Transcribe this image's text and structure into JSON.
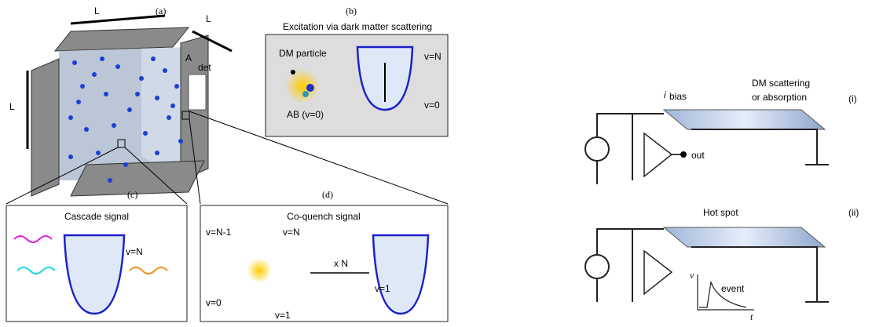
{
  "panel_a": {
    "label": "(a)",
    "dimension_labels": [
      "L",
      "L",
      "L"
    ],
    "detector_label": "A",
    "detector_subscript": "det"
  },
  "panel_b": {
    "label": "(b)",
    "title": "Excitation via dark matter scattering",
    "dm_particle": "DM particle",
    "molecule": "AB (v=0)",
    "upper_level": "v=N",
    "lower_level": "v=0"
  },
  "panel_c": {
    "label": "(c)",
    "title": "Cascade signal",
    "level": "v=N"
  },
  "panel_d": {
    "label": "(d)",
    "title": "Co-quench signal",
    "levels": [
      "v=N-1",
      "v=N",
      "v=0",
      "v=1"
    ],
    "multiplier": "x N",
    "well_level": "v=1"
  },
  "circuit_i": {
    "label": "(i)",
    "current": "i",
    "current_subscript": "bias",
    "process_line1": "DM scattering",
    "process_line2": "or absorption",
    "output": "out"
  },
  "circuit_ii": {
    "label": "(ii)",
    "title": "Hot spot",
    "y_axis": "v",
    "x_axis": "t",
    "signal": "event"
  }
}
